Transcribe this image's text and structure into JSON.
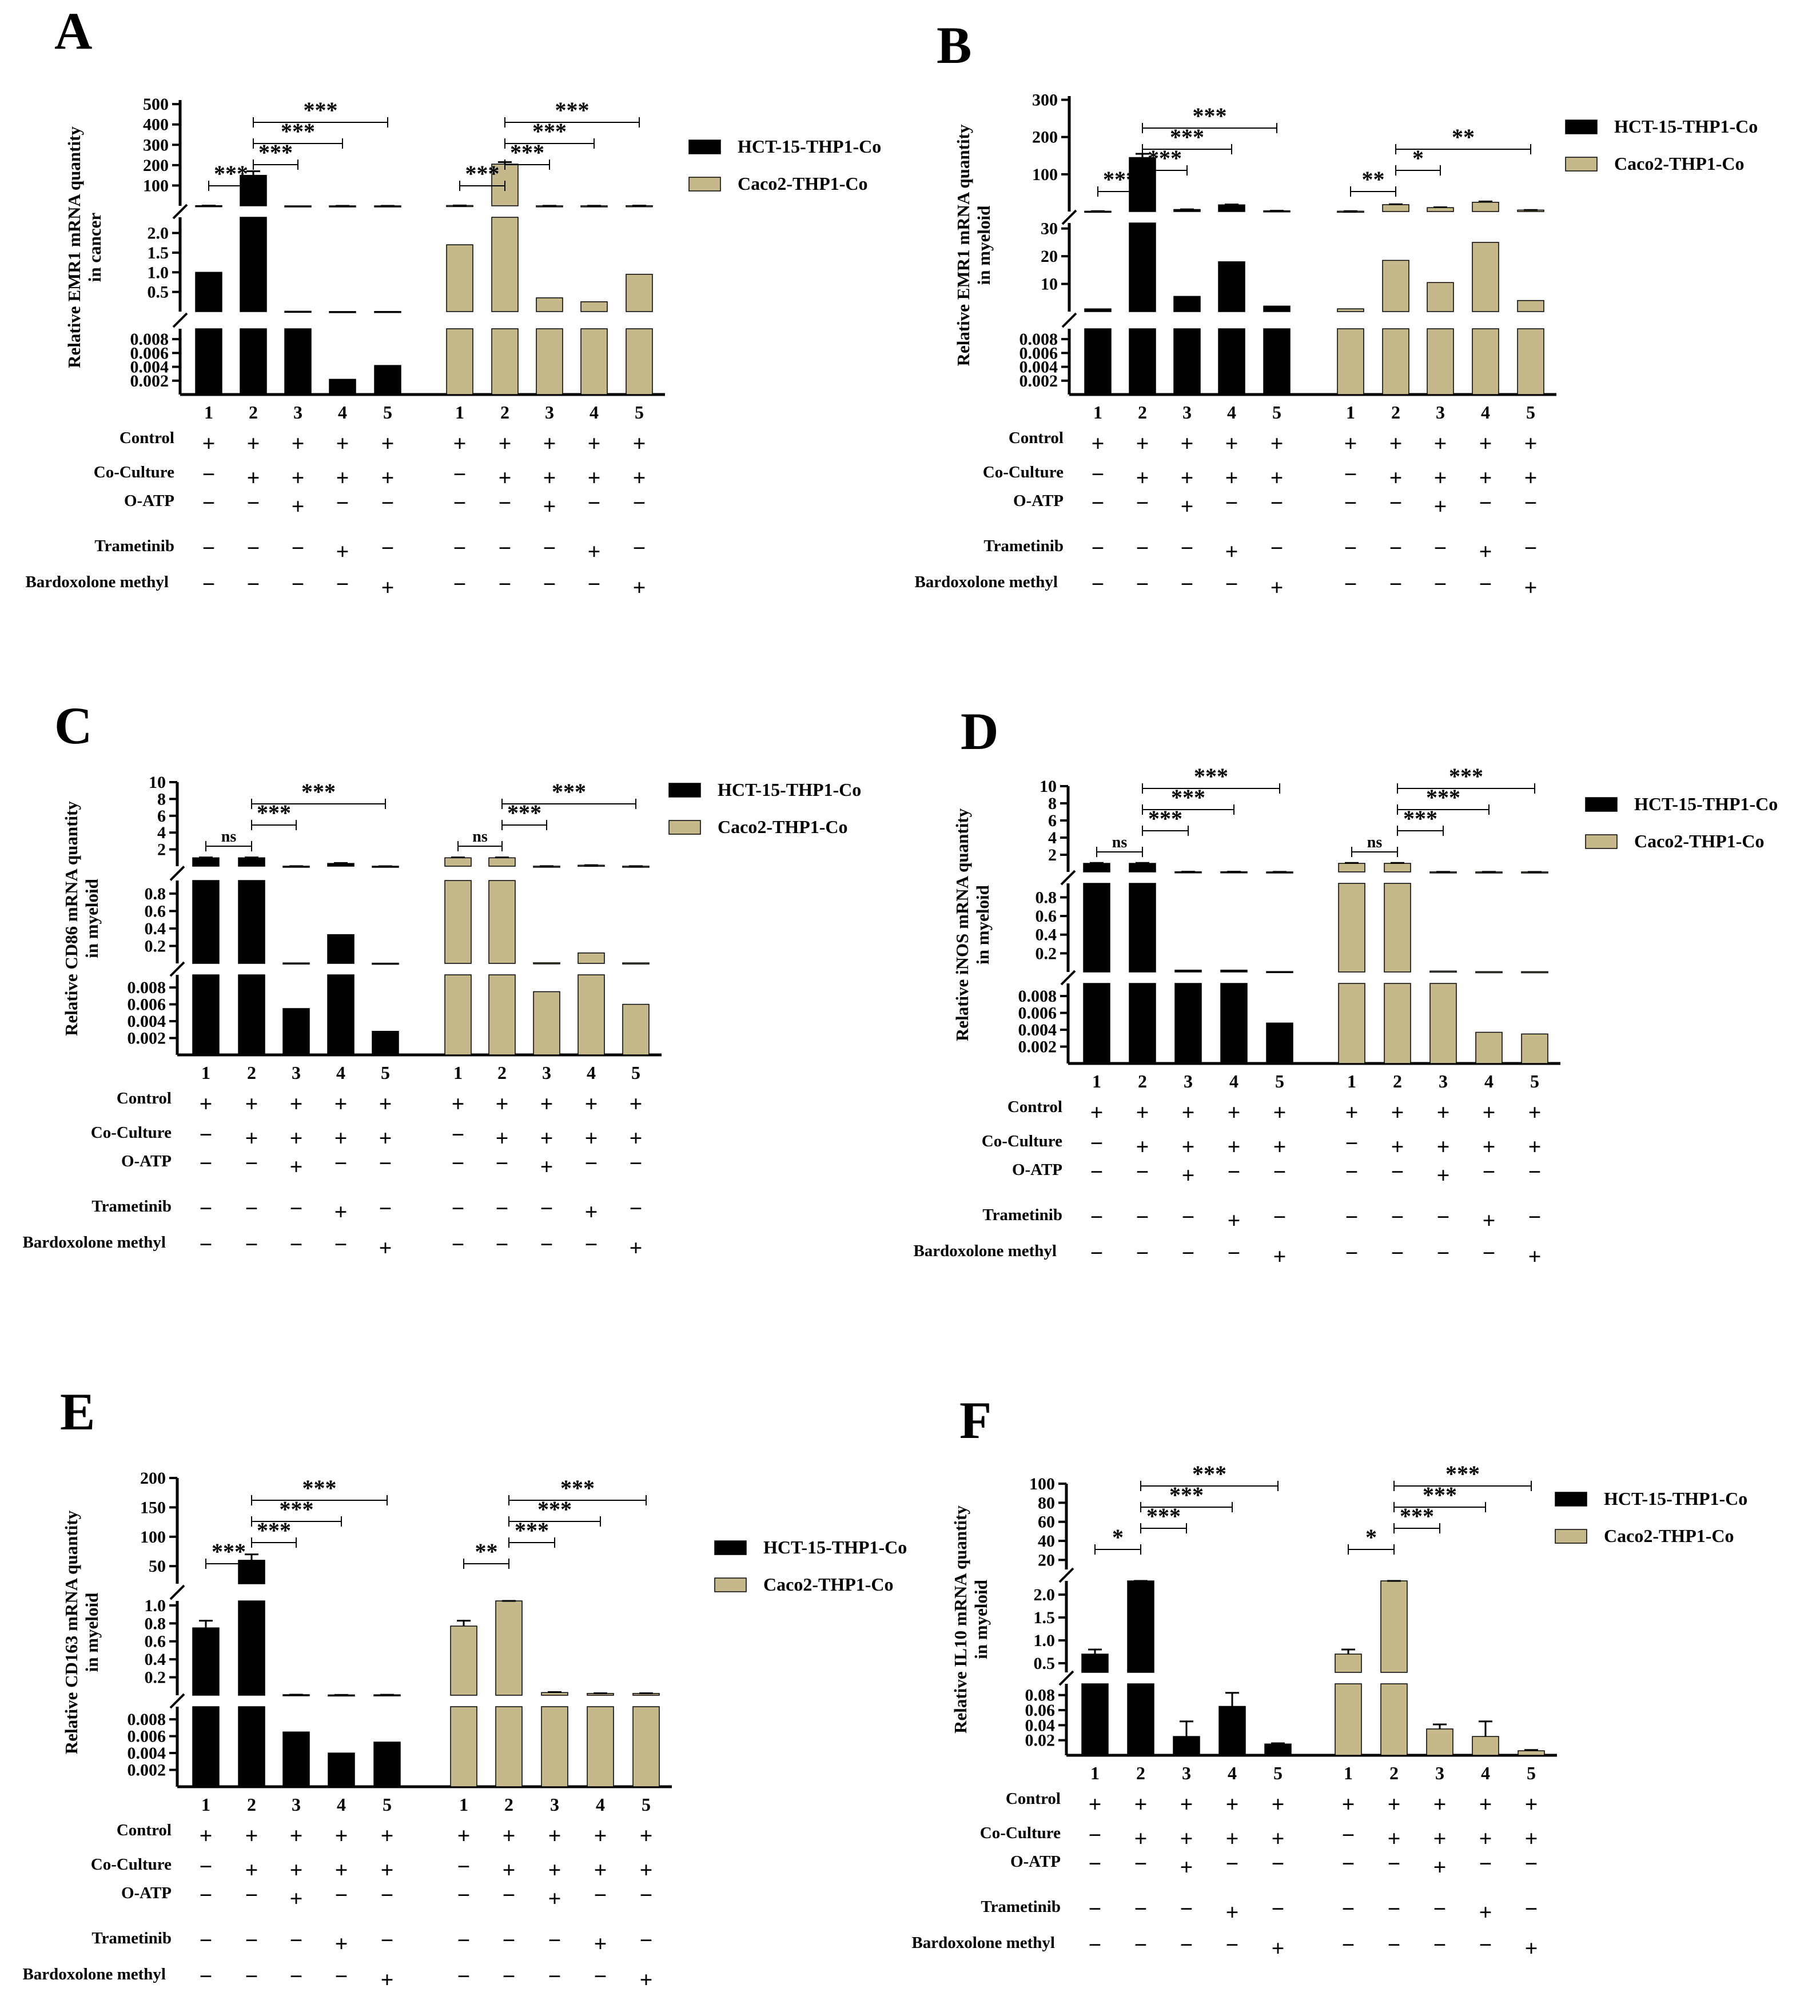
{
  "colors": {
    "hct": "#000000",
    "caco": "#c5b88b"
  },
  "row_labels": [
    "Control",
    "Co-Culture",
    "O-ATP",
    "Trametinib",
    "Bardoxolone methyl"
  ],
  "conditions": [
    [
      "+",
      "+",
      "+",
      "+",
      "+"
    ],
    [
      "−",
      "+",
      "+",
      "+",
      "+"
    ],
    [
      "−",
      "−",
      "+",
      "−",
      "−"
    ],
    [
      "−",
      "−",
      "−",
      "+",
      "−"
    ],
    [
      "−",
      "−",
      "−",
      "−",
      "+"
    ]
  ],
  "chart_data": [
    {
      "panel": "A",
      "type": "bar",
      "ylabel": [
        "Relative EMR1 mRNA quantity",
        "in cancer"
      ],
      "categories": [
        "1",
        "2",
        "3",
        "4",
        "5"
      ],
      "segments": [
        {
          "range": [
            0,
            0.0095
          ],
          "ticks": [
            "0.002",
            "0.004",
            "0.006",
            "0.008"
          ]
        },
        {
          "range": [
            0,
            2.4
          ],
          "ticks": [
            "0.5",
            "1.0",
            "1.5",
            "2.0"
          ]
        },
        {
          "range": [
            0,
            520
          ],
          "ticks": [
            "100",
            "200",
            "300",
            "400",
            "500"
          ]
        }
      ],
      "series": [
        {
          "name": "HCT-15-THP1-Co",
          "values": [
            1.0,
            150,
            0.01,
            0.0022,
            0.0042
          ],
          "errors": [
            0.05,
            20,
            0,
            0.0004,
            0.0003
          ]
        },
        {
          "name": "Caco2-THP1-Co",
          "values": [
            1.7,
            205,
            0.35,
            0.25,
            0.95
          ],
          "errors": [
            0.2,
            10,
            0.01,
            0.01,
            0.02
          ]
        }
      ],
      "annotations": [
        {
          "series": 0,
          "from": 1,
          "to": 2,
          "label": "***"
        },
        {
          "series": 0,
          "from": 2,
          "to": 3,
          "label": "***"
        },
        {
          "series": 0,
          "from": 2,
          "to": 4,
          "label": "***"
        },
        {
          "series": 0,
          "from": 2,
          "to": 5,
          "label": "***"
        },
        {
          "series": 1,
          "from": 1,
          "to": 2,
          "label": "***"
        },
        {
          "series": 1,
          "from": 2,
          "to": 3,
          "label": "***"
        },
        {
          "series": 1,
          "from": 2,
          "to": 4,
          "label": "***"
        },
        {
          "series": 1,
          "from": 2,
          "to": 5,
          "label": "***"
        }
      ]
    },
    {
      "panel": "B",
      "type": "bar",
      "ylabel": [
        "Relative EMR1 mRNA quantity",
        "in myeloid"
      ],
      "categories": [
        "1",
        "2",
        "3",
        "4",
        "5"
      ],
      "segments": [
        {
          "range": [
            0,
            0.0095
          ],
          "ticks": [
            "0.002",
            "0.004",
            "0.006",
            "0.008"
          ]
        },
        {
          "range": [
            0,
            32
          ],
          "ticks": [
            "10",
            "20",
            "30"
          ]
        },
        {
          "range": [
            0,
            310
          ],
          "ticks": [
            "100",
            "200",
            "300"
          ]
        }
      ],
      "series": [
        {
          "name": "HCT-15-THP1-Co",
          "values": [
            1.0,
            145,
            5.5,
            18,
            2.0
          ],
          "errors": [
            0.1,
            10,
            0.5,
            1,
            0.1
          ]
        },
        {
          "name": "Caco2-THP1-Co",
          "values": [
            1.0,
            18.5,
            10.5,
            25,
            4.0
          ],
          "errors": [
            0.1,
            1,
            1,
            2,
            0.2
          ]
        }
      ],
      "annotations": [
        {
          "series": 0,
          "from": 1,
          "to": 2,
          "label": "***"
        },
        {
          "series": 0,
          "from": 2,
          "to": 3,
          "label": "***"
        },
        {
          "series": 0,
          "from": 2,
          "to": 4,
          "label": "***"
        },
        {
          "series": 0,
          "from": 2,
          "to": 5,
          "label": "***"
        },
        {
          "series": 1,
          "from": 1,
          "to": 2,
          "label": "**"
        },
        {
          "series": 1,
          "from": 2,
          "to": 3,
          "label": "*"
        },
        {
          "series": 1,
          "from": 2,
          "to": 5,
          "label": "**"
        }
      ]
    },
    {
      "panel": "C",
      "type": "bar",
      "ylabel": [
        "Relative CD86 mRNA quantity",
        "in myeloid"
      ],
      "categories": [
        "1",
        "2",
        "3",
        "4",
        "5"
      ],
      "segments": [
        {
          "range": [
            0,
            0.0095
          ],
          "ticks": [
            "0.002",
            "0.004",
            "0.006",
            "0.008"
          ]
        },
        {
          "range": [
            0,
            0.95
          ],
          "ticks": [
            "0.2",
            "0.4",
            "0.6",
            "0.8"
          ]
        },
        {
          "range": [
            0,
            10
          ],
          "ticks": [
            "2",
            "4",
            "6",
            "8",
            "10"
          ]
        }
      ],
      "series": [
        {
          "name": "HCT-15-THP1-Co",
          "values": [
            1.0,
            1.0,
            0.0055,
            0.33,
            0.0028
          ],
          "errors": [
            0.05,
            0.05,
            0.0001,
            0.05,
            0.0001
          ]
        },
        {
          "name": "Caco2-THP1-Co",
          "values": [
            1.0,
            1.0,
            0.0075,
            0.12,
            0.006
          ],
          "errors": [
            0.05,
            0.05,
            0.0008,
            0.01,
            0.0001
          ]
        }
      ],
      "annotations": [
        {
          "series": 0,
          "from": 1,
          "to": 2,
          "label": "ns"
        },
        {
          "series": 0,
          "from": 2,
          "to": 3,
          "label": "***"
        },
        {
          "series": 0,
          "from": 2,
          "to": 5,
          "label": "***"
        },
        {
          "series": 1,
          "from": 1,
          "to": 2,
          "label": "ns"
        },
        {
          "series": 1,
          "from": 2,
          "to": 3,
          "label": "***"
        },
        {
          "series": 1,
          "from": 2,
          "to": 5,
          "label": "***"
        }
      ]
    },
    {
      "panel": "D",
      "type": "bar",
      "ylabel": [
        "Relative iNOS mRNA quantity",
        "in myeloid"
      ],
      "categories": [
        "1",
        "2",
        "3",
        "4",
        "5"
      ],
      "segments": [
        {
          "range": [
            0,
            0.0095
          ],
          "ticks": [
            "0.002",
            "0.004",
            "0.006",
            "0.008"
          ]
        },
        {
          "range": [
            0,
            0.95
          ],
          "ticks": [
            "0.2",
            "0.4",
            "0.6",
            "0.8"
          ]
        },
        {
          "range": [
            0,
            10
          ],
          "ticks": [
            "2",
            "4",
            "6",
            "8",
            "10"
          ]
        }
      ],
      "series": [
        {
          "name": "HCT-15-THP1-Co",
          "values": [
            1.0,
            1.0,
            0.02,
            0.02,
            0.0048
          ],
          "errors": [
            0.05,
            0.05,
            0.001,
            0.005,
            0.0024
          ]
        },
        {
          "name": "Caco2-THP1-Co",
          "values": [
            1.0,
            1.0,
            0.01,
            0.0037,
            0.0035
          ],
          "errors": [
            0.05,
            0.05,
            0.002,
            0.0027,
            0.0001
          ]
        }
      ],
      "annotations": [
        {
          "series": 0,
          "from": 1,
          "to": 2,
          "label": "ns"
        },
        {
          "series": 0,
          "from": 2,
          "to": 3,
          "label": "***"
        },
        {
          "series": 0,
          "from": 2,
          "to": 4,
          "label": "***"
        },
        {
          "series": 0,
          "from": 2,
          "to": 5,
          "label": "***"
        },
        {
          "series": 1,
          "from": 1,
          "to": 2,
          "label": "ns"
        },
        {
          "series": 1,
          "from": 2,
          "to": 3,
          "label": "***"
        },
        {
          "series": 1,
          "from": 2,
          "to": 4,
          "label": "***"
        },
        {
          "series": 1,
          "from": 2,
          "to": 5,
          "label": "***"
        }
      ]
    },
    {
      "panel": "E",
      "type": "bar",
      "ylabel": [
        "Relative CD163 mRNA quantity",
        "in myeloid"
      ],
      "categories": [
        "1",
        "2",
        "3",
        "4",
        "5"
      ],
      "segments": [
        {
          "range": [
            0,
            0.0095
          ],
          "ticks": [
            "0.002",
            "0.004",
            "0.006",
            "0.008"
          ]
        },
        {
          "range": [
            0,
            1.05
          ],
          "ticks": [
            "0.2",
            "0.4",
            "0.6",
            "0.8",
            "1.0"
          ]
        },
        {
          "range": [
            20,
            200
          ],
          "ticks": [
            "50",
            "100",
            "150",
            "200"
          ]
        }
      ],
      "series": [
        {
          "name": "HCT-15-THP1-Co",
          "values": [
            0.75,
            60,
            0.0065,
            0.004,
            0.0053
          ],
          "errors": [
            0.08,
            10,
            0.0001,
            0.0001,
            0.0003
          ]
        },
        {
          "name": "Caco2-THP1-Co",
          "values": [
            0.77,
            1.05,
            0.03,
            0.02,
            0.02
          ],
          "errors": [
            0.06,
            0.05,
            0.005,
            0.002,
            0.002
          ]
        }
      ],
      "annotations": [
        {
          "series": 0,
          "from": 1,
          "to": 2,
          "label": "***"
        },
        {
          "series": 0,
          "from": 2,
          "to": 3,
          "label": "***"
        },
        {
          "series": 0,
          "from": 2,
          "to": 4,
          "label": "***"
        },
        {
          "series": 0,
          "from": 2,
          "to": 5,
          "label": "***"
        },
        {
          "series": 1,
          "from": 1,
          "to": 2,
          "label": "**"
        },
        {
          "series": 1,
          "from": 2,
          "to": 3,
          "label": "***"
        },
        {
          "series": 1,
          "from": 2,
          "to": 4,
          "label": "***"
        },
        {
          "series": 1,
          "from": 2,
          "to": 5,
          "label": "***"
        }
      ]
    },
    {
      "panel": "F",
      "type": "bar",
      "ylabel": [
        "Relative IL10 mRNA quantity",
        "in myeloid"
      ],
      "categories": [
        "1",
        "2",
        "3",
        "4",
        "5"
      ],
      "segments": [
        {
          "range": [
            0,
            0.095
          ],
          "ticks": [
            "0.02",
            "0.04",
            "0.06",
            "0.08"
          ]
        },
        {
          "range": [
            0.3,
            2.3
          ],
          "ticks": [
            "0.5",
            "1.0",
            "1.5",
            "2.0"
          ]
        },
        {
          "range": [
            10,
            100
          ],
          "ticks": [
            "20",
            "40",
            "60",
            "80",
            "100"
          ]
        }
      ],
      "series": [
        {
          "name": "HCT-15-THP1-Co",
          "values": [
            0.7,
            2.5,
            0.025,
            0.065,
            0.015
          ],
          "errors": [
            0.1,
            0.3,
            0.02,
            0.018,
            0.001
          ]
        },
        {
          "name": "Caco2-THP1-Co",
          "values": [
            0.7,
            2.5,
            0.035,
            0.025,
            0.006
          ],
          "errors": [
            0.1,
            0.3,
            0.006,
            0.02,
            0.001
          ]
        }
      ],
      "annotations": [
        {
          "series": 0,
          "from": 1,
          "to": 2,
          "label": "*"
        },
        {
          "series": 0,
          "from": 2,
          "to": 3,
          "label": "***"
        },
        {
          "series": 0,
          "from": 2,
          "to": 4,
          "label": "***"
        },
        {
          "series": 0,
          "from": 2,
          "to": 5,
          "label": "***"
        },
        {
          "series": 1,
          "from": 1,
          "to": 2,
          "label": "*"
        },
        {
          "series": 1,
          "from": 2,
          "to": 3,
          "label": "***"
        },
        {
          "series": 1,
          "from": 2,
          "to": 4,
          "label": "***"
        },
        {
          "series": 1,
          "from": 2,
          "to": 5,
          "label": "***"
        }
      ]
    }
  ]
}
